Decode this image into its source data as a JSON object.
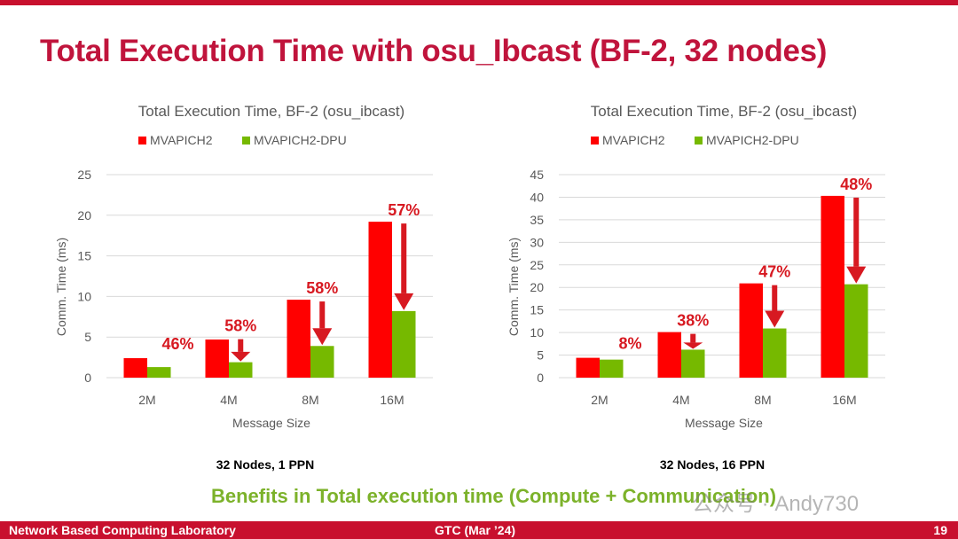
{
  "slide": {
    "title": "Total Execution Time with osu_Ibcast (BF-2, 32 nodes)",
    "benefits_text": "Benefits in Total execution time (Compute + Communication)",
    "watermark": "公众号 · Andy730",
    "footer": {
      "left": "Network Based Computing Laboratory",
      "center": "GTC (Mar ’24)",
      "page_number": "19"
    },
    "colors": {
      "accent": "#c8102e",
      "series_red": "#ff0000",
      "series_green": "#76b900",
      "annotation": "#d71921"
    }
  },
  "chart_data": [
    {
      "type": "bar",
      "title": "Total Execution Time, BF-2 (osu_ibcast)",
      "caption": "32 Nodes, 1 PPN",
      "xlabel": "Message Size",
      "ylabel": "Comm. Time (ms)",
      "categories": [
        "2M",
        "4M",
        "8M",
        "16M"
      ],
      "ylim": [
        0,
        25
      ],
      "yticks": [
        0,
        5,
        10,
        15,
        20,
        25
      ],
      "grid": true,
      "legend": "top-center",
      "series": [
        {
          "name": "MVAPICH2",
          "color": "#ff0000",
          "values": [
            2.4,
            4.7,
            9.6,
            19.2
          ]
        },
        {
          "name": "MVAPICH2-DPU",
          "color": "#76b900",
          "values": [
            1.3,
            1.9,
            3.9,
            8.2
          ]
        }
      ],
      "annotations": [
        "46%",
        "58%",
        "58%",
        "57%"
      ],
      "arrows": [
        false,
        true,
        true,
        true
      ]
    },
    {
      "type": "bar",
      "title": "Total Execution Time, BF-2 (osu_ibcast)",
      "caption": "32 Nodes, 16 PPN",
      "xlabel": "Message Size",
      "ylabel": "Comm. Time (ms)",
      "categories": [
        "2M",
        "4M",
        "8M",
        "16M"
      ],
      "ylim": [
        0,
        45
      ],
      "yticks": [
        0,
        5,
        10,
        15,
        20,
        25,
        30,
        35,
        40,
        45
      ],
      "grid": true,
      "legend": "top-center",
      "series": [
        {
          "name": "MVAPICH2",
          "color": "#ff0000",
          "values": [
            4.4,
            10.1,
            20.9,
            40.3
          ]
        },
        {
          "name": "MVAPICH2-DPU",
          "color": "#76b900",
          "values": [
            4.0,
            6.2,
            10.9,
            20.7
          ]
        }
      ],
      "annotations": [
        "8%",
        "38%",
        "47%",
        "48%"
      ],
      "arrows": [
        false,
        true,
        true,
        true
      ]
    }
  ]
}
